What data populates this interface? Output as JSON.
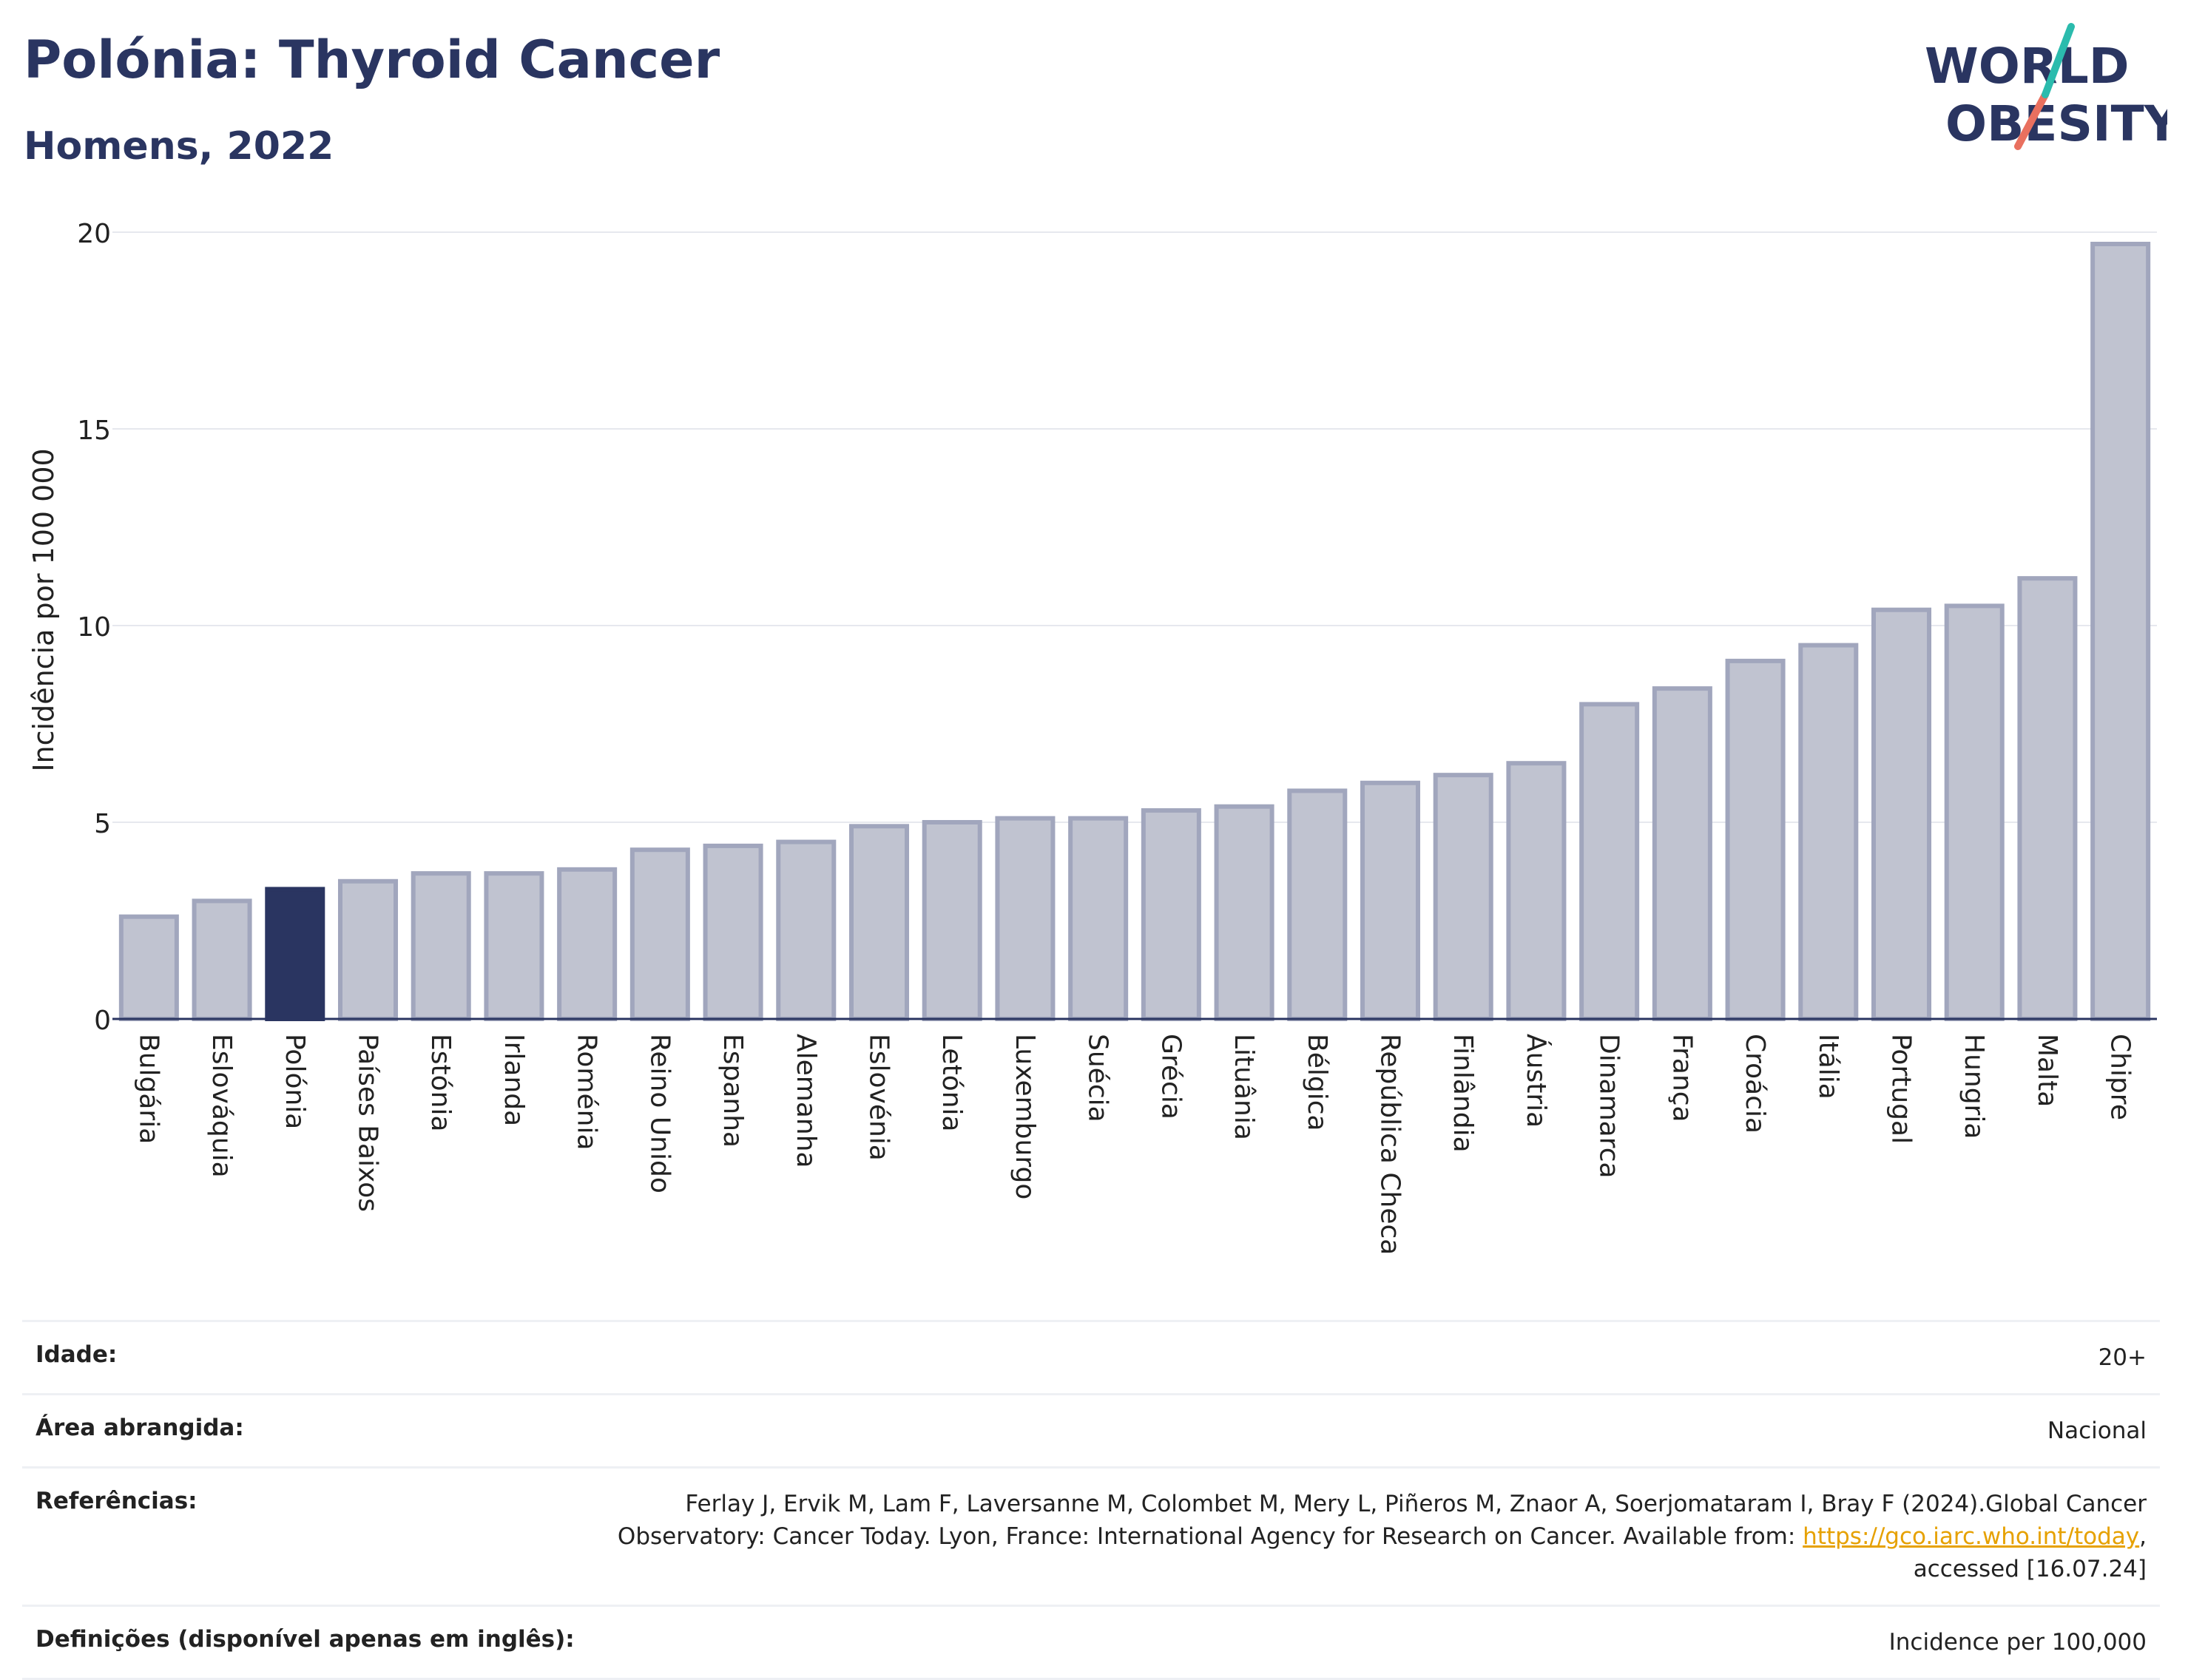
{
  "title": "Polónia: Thyroid Cancer",
  "subtitle": "Homens, 2022",
  "logo": {
    "line1": "WORLD",
    "line2": "OBESITY",
    "colors": {
      "text": "#2a3561",
      "slash_teal": "#2bbbad",
      "slash_coral": "#e9705f"
    }
  },
  "chart_data": {
    "type": "bar",
    "ylabel": "Incidência por 100 000",
    "ylim": [
      0,
      20
    ],
    "yticks": [
      "0",
      "5",
      "10",
      "15",
      "20"
    ],
    "highlight": "Polónia",
    "colors": {
      "bar": "#c0c3d0",
      "bar_border": "#a1a6bd",
      "highlight": "#2a3561",
      "grid": "#e6e8ee",
      "axis": "#2a3561"
    },
    "categories": [
      "Bulgária",
      "Eslováquia",
      "Polónia",
      "Países Baixos",
      "Estónia",
      "Irlanda",
      "Roménia",
      "Reino Unido",
      "Espanha",
      "Alemanha",
      "Eslovénia",
      "Letónia",
      "Luxemburgo",
      "Suécia",
      "Grécia",
      "Lituânia",
      "Bélgica",
      "República Checa",
      "Finlândia",
      "Áustria",
      "Dinamarca",
      "França",
      "Croácia",
      "Itália",
      "Portugal",
      "Hungria",
      "Malta",
      "Chipre"
    ],
    "values": [
      2.6,
      3.0,
      3.3,
      3.5,
      3.7,
      3.7,
      3.8,
      4.3,
      4.4,
      4.5,
      4.9,
      5.0,
      5.1,
      5.1,
      5.3,
      5.4,
      5.8,
      6.0,
      6.2,
      6.5,
      8.0,
      8.4,
      9.1,
      9.5,
      10.4,
      10.5,
      11.2,
      19.7
    ]
  },
  "meta": {
    "age_label": "Idade:",
    "age_value": "20+",
    "area_label": "Área abrangida:",
    "area_value": "Nacional",
    "ref_label": "Referências:",
    "ref_text_1": "Ferlay J, Ervik M, Lam F, Laversanne M, Colombet M, Mery L, Piñeros M, Znaor A, Soerjomataram I, Bray F (2024).Global Cancer Observatory: Cancer Today. Lyon, France: International Agency for Research on Cancer. Available from: ",
    "ref_link": "https://gco.iarc.who.int/today",
    "ref_text_2": ", accessed [16.07.24]",
    "def_label": "Definições (disponível apenas em inglês):",
    "def_value": "Incidence per 100,000"
  }
}
